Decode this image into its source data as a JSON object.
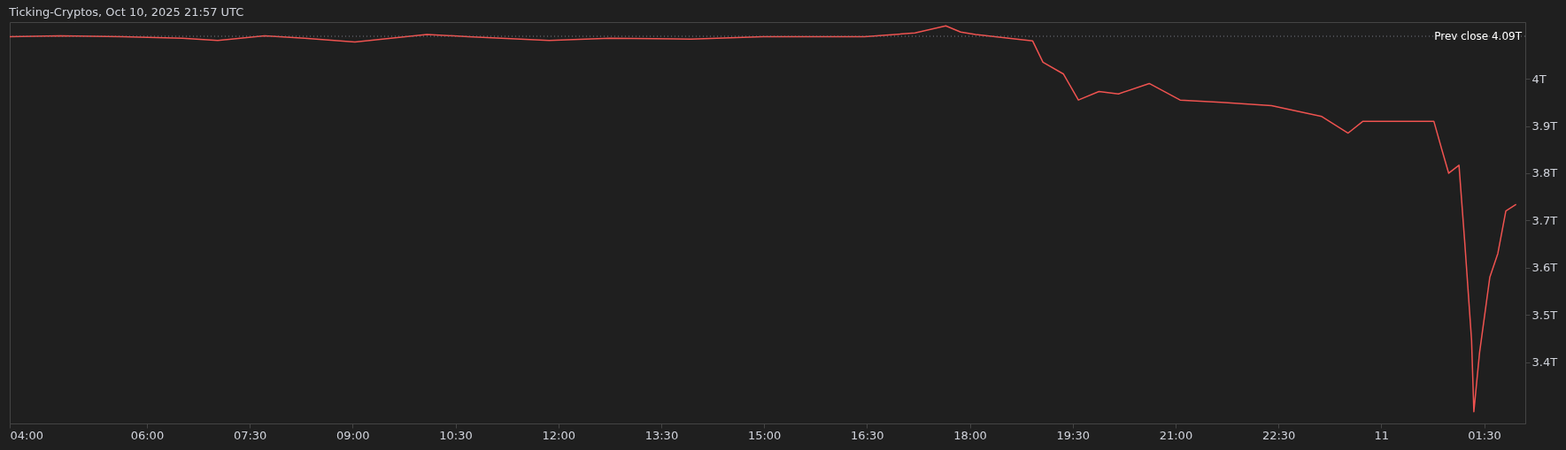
{
  "chart_data": {
    "type": "line",
    "title": "Ticking-Cryptos, Oct 10, 2025 21:57 UTC",
    "x": [
      "2025-10-10T04:00",
      "2025-10-10T04:44",
      "2025-10-10T05:38",
      "2025-10-10T06:31",
      "2025-10-10T07:02",
      "2025-10-10T07:43",
      "2025-10-10T08:18",
      "2025-10-10T09:02",
      "2025-10-10T10:05",
      "2025-10-10T10:41",
      "2025-10-10T11:52",
      "2025-10-10T12:45",
      "2025-10-10T13:56",
      "2025-10-10T14:59",
      "2025-10-10T15:43",
      "2025-10-10T16:28",
      "2025-10-10T17:12",
      "2025-10-10T17:39",
      "2025-10-10T17:52",
      "2025-10-10T18:05",
      "2025-10-10T18:41",
      "2025-10-10T18:55",
      "2025-10-10T19:04",
      "2025-10-10T19:22",
      "2025-10-10T19:35",
      "2025-10-10T19:53",
      "2025-10-10T20:10",
      "2025-10-10T20:37",
      "2025-10-10T21:04",
      "2025-10-10T21:40",
      "2025-10-10T22:24",
      "2025-10-10T23:08",
      "2025-10-10T23:31",
      "2025-10-10T23:44",
      "2025-10-11T00:20",
      "2025-10-11T00:46",
      "2025-10-11T00:53",
      "2025-10-11T00:59",
      "2025-10-11T01:08",
      "2025-10-11T01:13",
      "2025-10-11T01:19",
      "2025-10-11T01:21",
      "2025-10-11T01:26",
      "2025-10-11T01:35",
      "2025-10-11T01:42",
      "2025-10-11T01:49",
      "2025-10-11T01:58"
    ],
    "series": [
      {
        "color": "#ef5350",
        "values": [
          4.089,
          4.091,
          4.089,
          4.086,
          4.081,
          4.091,
          4.086,
          4.078,
          4.094,
          4.089,
          4.081,
          4.086,
          4.084,
          4.089,
          4.089,
          4.089,
          4.097,
          4.112,
          4.099,
          4.094,
          4.084,
          4.08,
          4.035,
          4.01,
          3.955,
          3.973,
          3.968,
          3.99,
          3.955,
          3.95,
          3.943,
          3.92,
          3.885,
          3.91,
          3.91,
          3.91,
          3.85,
          3.8,
          3.817,
          3.655,
          3.447,
          3.295,
          3.42,
          3.58,
          3.63,
          3.72,
          3.734
        ]
      }
    ],
    "xlim": [
      "2025-10-10T04:00",
      "2025-10-11T02:06"
    ],
    "xticks": [
      {
        "value": "2025-10-10T04:00",
        "label": "04:00"
      },
      {
        "value": "2025-10-10T06:00",
        "label": "06:00"
      },
      {
        "value": "2025-10-10T07:30",
        "label": "07:30"
      },
      {
        "value": "2025-10-10T09:00",
        "label": "09:00"
      },
      {
        "value": "2025-10-10T10:30",
        "label": "10:30"
      },
      {
        "value": "2025-10-10T12:00",
        "label": "12:00"
      },
      {
        "value": "2025-10-10T13:30",
        "label": "13:30"
      },
      {
        "value": "2025-10-10T15:00",
        "label": "15:00"
      },
      {
        "value": "2025-10-10T16:30",
        "label": "16:30"
      },
      {
        "value": "2025-10-10T18:00",
        "label": "18:00"
      },
      {
        "value": "2025-10-10T19:30",
        "label": "19:30"
      },
      {
        "value": "2025-10-10T21:00",
        "label": "21:00"
      },
      {
        "value": "2025-10-10T22:30",
        "label": "22:30"
      },
      {
        "value": "2025-10-11T00:00",
        "label": "11"
      },
      {
        "value": "2025-10-11T01:30",
        "label": "01:30"
      }
    ],
    "ylim": [
      3.27,
      4.12
    ],
    "yticks": [
      {
        "value": 3.4,
        "label": "3.4T"
      },
      {
        "value": 3.5,
        "label": "3.5T"
      },
      {
        "value": 3.6,
        "label": "3.6T"
      },
      {
        "value": 3.7,
        "label": "3.7T"
      },
      {
        "value": 3.8,
        "label": "3.8T"
      },
      {
        "value": 3.9,
        "label": "3.9T"
      },
      {
        "value": 4,
        "label": "4T"
      }
    ],
    "ref_lines": [
      {
        "axis": "y",
        "value": 4.09,
        "label": "Prev close  4.09T",
        "color": "#787b86",
        "line_style": "dotted"
      }
    ],
    "grid": false
  }
}
